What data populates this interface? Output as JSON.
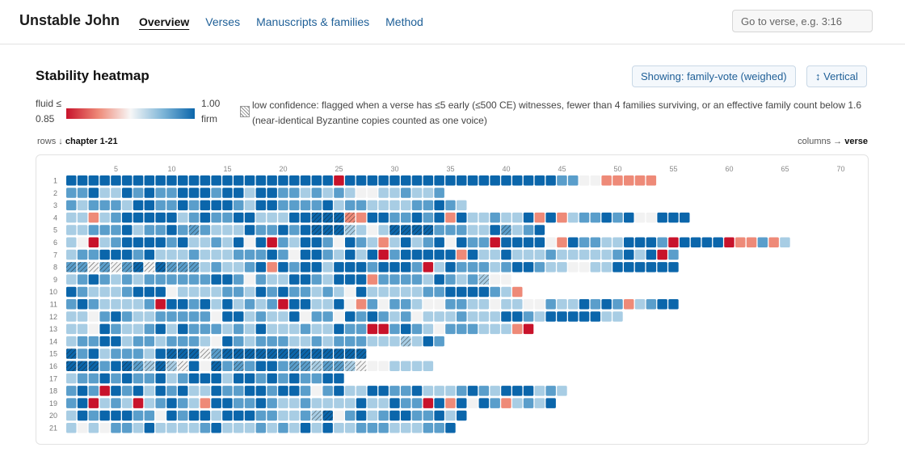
{
  "app": {
    "title": "Unstable John"
  },
  "nav": [
    {
      "label": "Overview",
      "active": true
    },
    {
      "label": "Verses",
      "active": false
    },
    {
      "label": "Manuscripts & families",
      "active": false
    },
    {
      "label": "Method",
      "active": false
    }
  ],
  "search": {
    "placeholder": "Go to verse, e.g. 3:16",
    "value": ""
  },
  "heatmap": {
    "title": "Stability heatmap",
    "showing_button": "Showing: family-vote (weighed)",
    "orientation_button": "↕ Vertical",
    "legend": {
      "fluid_label": "fluid ≤",
      "fluid_value": "0.85",
      "firm_value": "1.00",
      "firm_label": "firm",
      "low_confidence_text": "low confidence: flagged when a verse has ≤5 early (≤500 CE) witnesses, fewer than 4 families surviving, or an effective family count below 1.6 (near-identical Byzantine copies counted as one voice)"
    },
    "rows_caption_prefix": "rows ↓",
    "rows_caption_bold": "chapter 1-21",
    "cols_caption_prefix": "columns →",
    "cols_caption_bold": "verse"
  },
  "colors": {
    "fluid": "#c8132b",
    "mid": "#f7f7f7",
    "firm": "#0b66ab",
    "nav_link": "#1e5f97"
  },
  "chart_data": {
    "type": "heatmap",
    "x_label": "verse",
    "y_label": "chapter",
    "x_ticks": [
      5,
      10,
      15,
      20,
      25,
      30,
      35,
      40,
      45,
      50,
      55,
      60,
      65,
      70
    ],
    "value_range": [
      0.85,
      1.0
    ],
    "rows": [
      {
        "chapter": 1,
        "values": "55555555555555555555555505555555555555555555442211111",
        "hatched": ""
      },
      {
        "chapter": 2,
        "values": "4453354544555455355443434322334334",
        "hatched": ""
      },
      {
        "chapter": 3,
        "values": "434443554454555435544445344333344543",
        "hatched": ""
      },
      {
        "chapter": 4,
        "values": "33134555553454455333555551155445451533433515134454522555",
        "hatched": "23,24,25,26"
      },
      {
        "chapter": 5,
        "values": "3344453445444333544545555332355554443354345",
        "hatched": "12,23,24,25,26,30,31,32,33,40"
      },
      {
        "chapter": 6,
        "values": "32034555545334352504355425431353452544055552154433555405555011413",
        "hatched": ""
      },
      {
        "chapter": 7,
        "values": "3445554533343334445425543535045555515335333433333453504",
        "hatched": ""
      },
      {
        "chapter": 8,
        "values": "4424245254443433451545535554555403544434554332233555555",
        "hatched": "1,2,3,4,5,6,7,8,9,10,11,12"
      },
      {
        "chapter": 9,
        "values": "3454343444444554243355435551444435434322",
        "hatched": "38"
      },
      {
        "chapter": 10,
        "values": "54333455523333443545443432533333445555431",
        "hatched": ""
      },
      {
        "chapter": 11,
        "values": "4543333405545353434055335214244322443323322433545413455",
        "hatched": ""
      },
      {
        "chapter": 12,
        "values": "33245433444442553433524425454342333433355435555533",
        "hatched": ""
      },
      {
        "chapter": 13,
        "values": "332543345354443435333433544004543244433310",
        "hatched": ""
      },
      {
        "chapter": 14,
        "values": "3445534434443254344433434443333354",
        "hatched": "31"
      },
      {
        "chapter": 15,
        "values": "545344435555245555555555555",
        "hatched": "1,10,11,12,13,14,15,16,17,18,19,20,21,22,23,24,25,26,27"
      },
      {
        "chapter": 16,
        "values": "555455435325254445544434432223333",
        "hatched": "1,2,3,6,7,8,9,10,11,14,16,21,22,23,24,25,26,27"
      },
      {
        "chapter": 17,
        "values": "3445454453455535545454455",
        "hatched": ""
      },
      {
        "chapter": 18,
        "values": "454054535453354455455424533554453334543555343",
        "hatched": ""
      },
      {
        "chapter": 19,
        "values": "45034303454315544543343333533544051525413435",
        "hatched": ""
      },
      {
        "chapter": 20,
        "values": "354555442545535554433435245345544535",
        "hatched": "23,24"
      },
      {
        "chapter": 21,
        "values": "32324435333345333434353533444333445",
        "hatched": ""
      }
    ],
    "value_scale_note": "digits 0-5 map to stability levels from fluid (0 ≈ 0.85) to firm (5 = 1.00)"
  }
}
